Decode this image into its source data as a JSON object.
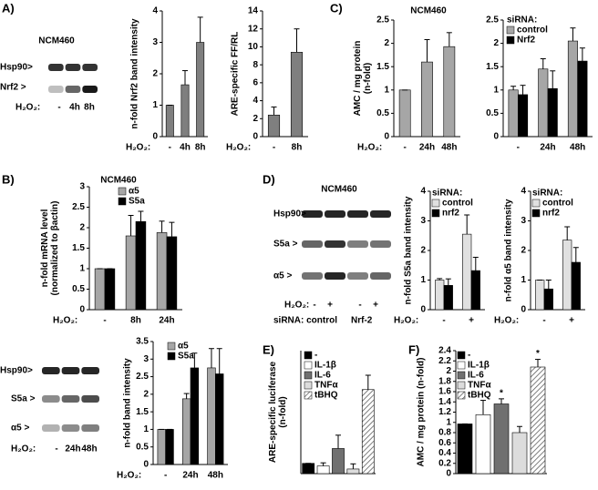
{
  "panel_labels": [
    "A)",
    "B)",
    "C)",
    "D)",
    "E)",
    "F)"
  ],
  "blots": [
    {
      "title": "NCM460",
      "rows": [
        "Hsp90>",
        "Nrf2 >"
      ],
      "treatment_label": "H₂O₂:",
      "lanes": [
        "-",
        "4h",
        "8h"
      ]
    },
    {
      "title": "NCM460",
      "rows": [
        "Hsp90>",
        "S5a >",
        "α5 >"
      ],
      "treatment_label": "H₂O₂:",
      "lanes": [
        "-",
        "+",
        "-",
        "+"
      ],
      "sirna_label": "siRNA: control",
      "sirna_second": "Nrf-2"
    },
    {
      "rows": [
        "Hsp90>",
        "S5a >",
        "α5 >"
      ],
      "treatment_label": "H₂O₂:",
      "lanes": [
        "-",
        "24h",
        "48h"
      ]
    }
  ],
  "chart_data": [
    {
      "type": "bar",
      "ylabel": [
        "n-fold Nrf2 band intensity"
      ],
      "xlabel": "H₂O₂:",
      "categories": [
        "-",
        "4h",
        "8h"
      ],
      "series": [
        {
          "color": "#7f7f7f",
          "values": [
            1,
            1.65,
            3
          ],
          "errors": [
            0,
            0.45,
            0.8
          ]
        }
      ],
      "ylim": [
        0,
        4
      ],
      "yticks": [
        0,
        1,
        2,
        3,
        4
      ]
    },
    {
      "type": "bar",
      "ylabel": [
        "ARE-specific FF/RL"
      ],
      "xlabel": "H₂O₂:",
      "categories": [
        "-",
        "8h"
      ],
      "series": [
        {
          "color": "#7f7f7f",
          "values": [
            2.4,
            9.4
          ],
          "errors": [
            0.9,
            2.6
          ]
        }
      ],
      "ylim": [
        0,
        14
      ],
      "yticks": [
        0,
        2,
        4,
        6,
        8,
        10,
        12,
        14
      ]
    },
    {
      "type": "bar",
      "title": "NCM460",
      "ylabel": [
        "AMC / mg protein",
        "(n-fold)"
      ],
      "xlabel": "H₂O₂:",
      "categories": [
        "-",
        "24h",
        "48h"
      ],
      "series": [
        {
          "color": "#a6a6a6",
          "values": [
            1,
            1.6,
            1.93
          ],
          "errors": [
            0,
            0.48,
            0.3
          ]
        }
      ],
      "ylim": [
        0,
        2.5
      ],
      "yticks": [
        0,
        0.5,
        1,
        1.5,
        2,
        2.5
      ]
    },
    {
      "type": "bar",
      "legend_title": "siRNA:",
      "categories": [
        "-",
        "24h",
        "48h"
      ],
      "series": [
        {
          "name": "control",
          "color": "#a6a6a6",
          "values": [
            1,
            1.45,
            2.05
          ],
          "errors": [
            0.08,
            0.22,
            0.28
          ]
        },
        {
          "name": "Nrf2",
          "color": "#000000",
          "values": [
            0.9,
            1.03,
            1.62
          ],
          "errors": [
            0.2,
            0.38,
            0.28
          ]
        }
      ],
      "ylim": [
        0,
        2.5
      ],
      "yticks": [
        0,
        0.5,
        1,
        1.5,
        2,
        2.5
      ]
    },
    {
      "type": "bar",
      "title": "NCM460",
      "ylabel": [
        "n-fold mRNA level",
        "(normalized to βactin)"
      ],
      "xlabel": "H₂O₂:",
      "categories": [
        "-",
        "8h",
        "24h"
      ],
      "series": [
        {
          "name": "α5",
          "color": "#a6a6a6",
          "values": [
            1,
            1.8,
            1.88
          ],
          "errors": [
            0,
            0.5,
            0.28
          ]
        },
        {
          "name": "S5a",
          "color": "#000000",
          "values": [
            1,
            2.15,
            1.78
          ],
          "errors": [
            0,
            0.25,
            0.35
          ]
        }
      ],
      "ylim": [
        0,
        3
      ],
      "yticks": [
        0,
        0.5,
        1,
        1.5,
        2,
        2.5,
        3
      ]
    },
    {
      "type": "bar",
      "ylabel": [
        "n-fold band intensity"
      ],
      "xlabel": "H₂O₂:",
      "categories": [
        "-",
        "24h",
        "48h"
      ],
      "series": [
        {
          "name": "α5",
          "color": "#a6a6a6",
          "values": [
            1,
            1.87,
            2.75
          ],
          "errors": [
            0,
            0.15,
            0.55
          ]
        },
        {
          "name": "S5a",
          "color": "#000000",
          "values": [
            1,
            2.75,
            2.58
          ],
          "errors": [
            0,
            0.42,
            0.72
          ]
        }
      ],
      "ylim": [
        0,
        3.5
      ],
      "yticks": [
        0,
        0.5,
        1,
        1.5,
        2,
        2.5,
        3,
        3.5
      ]
    },
    {
      "type": "bar",
      "legend_title": "siRNA:",
      "ylabel": [
        "n-fold S5a band intensity"
      ],
      "xlabel": "H₂O₂:",
      "categories": [
        "-",
        "+"
      ],
      "series": [
        {
          "name": "control",
          "color": "#e0e0e0",
          "values": [
            1,
            2.55
          ],
          "errors": [
            0.05,
            0.65
          ]
        },
        {
          "name": "nrf2",
          "color": "#000000",
          "values": [
            0.82,
            1.32
          ],
          "errors": [
            0.22,
            0.45
          ]
        }
      ],
      "ylim": [
        0,
        4
      ],
      "yticks": [
        0,
        1,
        2,
        3,
        4
      ]
    },
    {
      "type": "bar",
      "legend_title": "siRNA:",
      "ylabel": [
        "n-fold α5 band intensity"
      ],
      "xlabel": "H₂O₂:",
      "categories": [
        "-",
        "+"
      ],
      "series": [
        {
          "name": "control",
          "color": "#e0e0e0",
          "values": [
            1,
            2.35
          ],
          "errors": [
            0,
            0.45
          ]
        },
        {
          "name": "nrf2",
          "color": "#000000",
          "values": [
            0.7,
            1.6
          ],
          "errors": [
            0.3,
            0.5
          ]
        }
      ],
      "ylim": [
        0,
        4
      ],
      "yticks": [
        0,
        1,
        2,
        3,
        4
      ]
    },
    {
      "type": "colorbar",
      "ylabel": [
        "ARE-specific luciferase",
        "(n-fold)"
      ],
      "categories": [
        "-",
        "IL-1β",
        "IL-6",
        "TNFα",
        "tBHQ"
      ],
      "colors": [
        "#000000",
        "#ffffff",
        "#707070",
        "#dcdcdc",
        "#ffffff"
      ],
      "hatch": [
        false,
        false,
        false,
        false,
        true
      ],
      "values": [
        1,
        0.75,
        2.45,
        0.45,
        8.2
      ],
      "errors": [
        0,
        0.3,
        1.3,
        0.5,
        1.4
      ],
      "ylim": [
        0,
        12
      ]
    },
    {
      "type": "colorbar",
      "ylabel": [
        "AMC / mg protein (n-fold)"
      ],
      "categories": [
        "-",
        "IL-1β",
        "IL-6",
        "TNFα",
        "tBHQ"
      ],
      "colors": [
        "#000000",
        "#ffffff",
        "#707070",
        "#dcdcdc",
        "#ffffff"
      ],
      "hatch": [
        false,
        false,
        false,
        false,
        true
      ],
      "values": [
        0.97,
        1.15,
        1.36,
        0.8,
        2.08
      ],
      "errors": [
        0,
        0.28,
        0.1,
        0.12,
        0.15
      ],
      "annotations": [
        "*",
        "*"
      ],
      "ylim": [
        0,
        2.4
      ],
      "yticks": [
        0,
        0.2,
        0.4,
        0.6,
        0.8,
        1,
        1.2,
        1.4,
        1.6,
        1.8,
        2,
        2.2,
        2.4
      ]
    }
  ]
}
